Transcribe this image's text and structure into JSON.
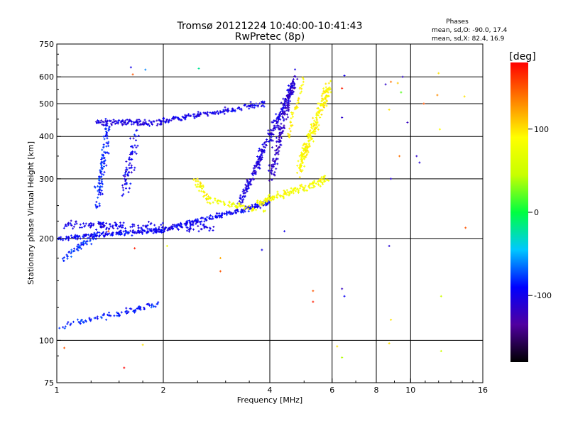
{
  "chart_data": {
    "type": "scatter",
    "title": "Tromsø 20121224 10:40:00-10:41:43",
    "subtitle": "RwPretec (8p)",
    "xlabel": "Frequency [MHz]",
    "ylabel": "Stationary phase Virtual Height [km]",
    "x_scale": "log",
    "y_scale": "log",
    "xlim": [
      1,
      16
    ],
    "ylim": [
      75,
      750
    ],
    "x_ticks": [
      1,
      2,
      4,
      6,
      8,
      10,
      16
    ],
    "x_tick_labels": [
      "1",
      "2",
      "4",
      "6",
      "8",
      "10",
      "16"
    ],
    "y_ticks": [
      75,
      100,
      200,
      300,
      400,
      500,
      600,
      750
    ],
    "y_tick_labels": [
      "75",
      "100",
      "200",
      "300",
      "400",
      "500",
      "600",
      "750"
    ],
    "x_gridlines": [
      2,
      4,
      6,
      8,
      10
    ],
    "y_gridlines": [
      100,
      200,
      300,
      400,
      500,
      600
    ],
    "grid": true,
    "legend": {
      "heading": "Phases",
      "line1": "mean, sd,O: -90.0, 17.4",
      "line2": "mean, sd,X:  82.4, 16.9",
      "placement": "top-right"
    },
    "colorbar": {
      "label": "[deg]",
      "range": [
        -180,
        180
      ],
      "ticks": [
        -100,
        0,
        100
      ],
      "tick_labels": [
        "-100",
        "0",
        "100"
      ],
      "stops": [
        "#000000",
        "#5000a0",
        "#0000ff",
        "#00c8ff",
        "#00ff40",
        "#c8ff00",
        "#ffff00",
        "#ff8000",
        "#ff0000"
      ]
    },
    "series": [
      {
        "traces": [
          {
            "x0": 1.02,
            "x1": 1.95,
            "y0": 110,
            "y1": 128,
            "phase": -85,
            "n": 90,
            "spread": 0.03
          },
          {
            "x0": 1.05,
            "x1": 1.3,
            "y0": 175,
            "y1": 205,
            "phase": -80,
            "n": 60,
            "spread": 0.04
          },
          {
            "x0": 1.0,
            "x1": 2.0,
            "y0": 200,
            "y1": 212,
            "phase": -95,
            "n": 180,
            "spread": 0.025
          },
          {
            "x0": 2.0,
            "x1": 4.0,
            "y0": 212,
            "y1": 255,
            "phase": -95,
            "n": 200,
            "spread": 0.025
          },
          {
            "x0": 1.05,
            "x1": 2.8,
            "y0": 220,
            "y1": 215,
            "phase": -100,
            "n": 160,
            "spread": 0.04
          },
          {
            "x0": 1.3,
            "x1": 1.4,
            "y0": 250,
            "y1": 440,
            "phase": -85,
            "n": 110,
            "spread": 0.09
          },
          {
            "x0": 1.55,
            "x1": 1.7,
            "y0": 280,
            "y1": 430,
            "phase": -100,
            "n": 70,
            "spread": 0.1
          },
          {
            "x0": 1.3,
            "x1": 2.0,
            "y0": 440,
            "y1": 440,
            "phase": -105,
            "n": 110,
            "spread": 0.035
          },
          {
            "x0": 2.0,
            "x1": 3.9,
            "y0": 445,
            "y1": 500,
            "phase": -100,
            "n": 150,
            "spread": 0.03
          },
          {
            "x0": 3.3,
            "x1": 4.7,
            "y0": 255,
            "y1": 580,
            "phase": -105,
            "n": 260,
            "spread": 0.06
          },
          {
            "x0": 4.0,
            "x1": 4.7,
            "y0": 300,
            "y1": 600,
            "phase": -115,
            "n": 140,
            "spread": 0.08
          },
          {
            "x0": 2.45,
            "x1": 2.7,
            "y0": 300,
            "y1": 260,
            "phase": 90,
            "n": 40,
            "spread": 0.05
          },
          {
            "x0": 2.7,
            "x1": 3.9,
            "y0": 260,
            "y1": 240,
            "phase": 80,
            "n": 60,
            "spread": 0.03
          },
          {
            "x0": 3.7,
            "x1": 5.9,
            "y0": 255,
            "y1": 300,
            "phase": 85,
            "n": 150,
            "spread": 0.04
          },
          {
            "x0": 4.8,
            "x1": 5.9,
            "y0": 320,
            "y1": 570,
            "phase": 90,
            "n": 220,
            "spread": 0.08
          },
          {
            "x0": 4.5,
            "x1": 5.0,
            "y0": 400,
            "y1": 600,
            "phase": 95,
            "n": 40,
            "spread": 0.05
          }
        ],
        "sparse_points": [
          {
            "x": 1.62,
            "y": 640,
            "phase": -100
          },
          {
            "x": 1.64,
            "y": 610,
            "phase": 150
          },
          {
            "x": 1.78,
            "y": 630,
            "phase": -60
          },
          {
            "x": 2.52,
            "y": 635,
            "phase": -20
          },
          {
            "x": 1.4,
            "y": 210,
            "phase": 150
          },
          {
            "x": 1.66,
            "y": 187,
            "phase": 170
          },
          {
            "x": 2.05,
            "y": 190,
            "phase": 80
          },
          {
            "x": 2.9,
            "y": 175,
            "phase": 120
          },
          {
            "x": 2.9,
            "y": 160,
            "phase": 150
          },
          {
            "x": 3.8,
            "y": 185,
            "phase": -100
          },
          {
            "x": 4.4,
            "y": 210,
            "phase": -100
          },
          {
            "x": 5.3,
            "y": 140,
            "phase": 150
          },
          {
            "x": 5.3,
            "y": 130,
            "phase": 170
          },
          {
            "x": 6.4,
            "y": 142,
            "phase": -120
          },
          {
            "x": 6.5,
            "y": 135,
            "phase": -95
          },
          {
            "x": 6.5,
            "y": 605,
            "phase": -100
          },
          {
            "x": 6.4,
            "y": 455,
            "phase": -115
          },
          {
            "x": 6.4,
            "y": 555,
            "phase": 170
          },
          {
            "x": 8.5,
            "y": 570,
            "phase": -115
          },
          {
            "x": 8.8,
            "y": 580,
            "phase": 140
          },
          {
            "x": 8.7,
            "y": 480,
            "phase": 100
          },
          {
            "x": 8.7,
            "y": 190,
            "phase": -110
          },
          {
            "x": 8.8,
            "y": 300,
            "phase": -110
          },
          {
            "x": 8.8,
            "y": 115,
            "phase": 100
          },
          {
            "x": 8.7,
            "y": 98,
            "phase": 100
          },
          {
            "x": 9.2,
            "y": 575,
            "phase": 110
          },
          {
            "x": 9.5,
            "y": 600,
            "phase": -115
          },
          {
            "x": 9.4,
            "y": 540,
            "phase": 20
          },
          {
            "x": 9.3,
            "y": 350,
            "phase": 140
          },
          {
            "x": 9.8,
            "y": 440,
            "phase": -120
          },
          {
            "x": 10.4,
            "y": 350,
            "phase": -115
          },
          {
            "x": 10.6,
            "y": 335,
            "phase": -110
          },
          {
            "x": 10.9,
            "y": 500,
            "phase": 150
          },
          {
            "x": 11.9,
            "y": 530,
            "phase": 130
          },
          {
            "x": 12.0,
            "y": 615,
            "phase": 100
          },
          {
            "x": 12.1,
            "y": 420,
            "phase": 90
          },
          {
            "x": 12.2,
            "y": 135,
            "phase": 50
          },
          {
            "x": 12.2,
            "y": 93,
            "phase": 50
          },
          {
            "x": 14.2,
            "y": 525,
            "phase": 100
          },
          {
            "x": 14.3,
            "y": 215,
            "phase": 150
          },
          {
            "x": 6.2,
            "y": 96,
            "phase": 100
          },
          {
            "x": 6.4,
            "y": 89,
            "phase": 40
          },
          {
            "x": 1.05,
            "y": 95,
            "phase": 150
          },
          {
            "x": 1.55,
            "y": 83,
            "phase": 180
          },
          {
            "x": 1.75,
            "y": 97,
            "phase": 100
          }
        ]
      }
    ]
  }
}
